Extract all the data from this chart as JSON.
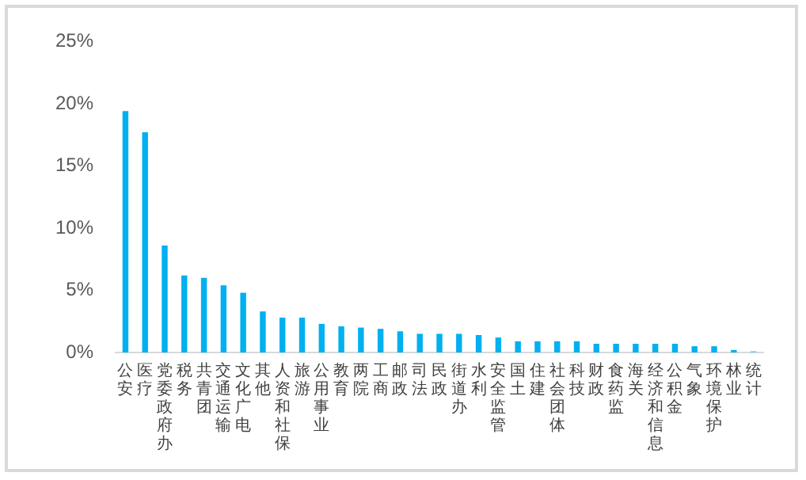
{
  "chart_data": {
    "type": "bar",
    "categories": [
      "公安",
      "医疗",
      "党委政府办",
      "税务",
      "共青团",
      "交通运输",
      "文化广电",
      "其他",
      "人资和社保",
      "旅游",
      "公用事业",
      "教育",
      "两院",
      "工商",
      "邮政",
      "司法",
      "民政",
      "街道办",
      "水利",
      "安全监管",
      "国土",
      "住建",
      "社会团体",
      "科技",
      "财政",
      "食药监",
      "海关",
      "经济和信息",
      "公积金",
      "气象",
      "环境保护",
      "林业",
      "统计"
    ],
    "values": [
      19.4,
      17.7,
      8.6,
      6.2,
      6.0,
      5.4,
      4.8,
      3.3,
      2.8,
      2.8,
      2.3,
      2.1,
      2.0,
      1.9,
      1.7,
      1.5,
      1.5,
      1.5,
      1.4,
      1.2,
      0.9,
      0.9,
      0.9,
      0.9,
      0.7,
      0.7,
      0.7,
      0.7,
      0.7,
      0.5,
      0.5,
      0.2,
      0.1
    ],
    "colors": [
      "#00b0f0",
      "#00b0f0",
      "#00b0f0",
      "#00b0f0",
      "#00b0f0",
      "#00b0f0",
      "#00b0f0",
      "#00b0f0",
      "#00b0f0",
      "#00b0f0",
      "#00b0f0",
      "#00b0f0",
      "#00b0f0",
      "#00b0f0",
      "#00b0f0",
      "#00b0f0",
      "#00b0f0",
      "#00b0f0",
      "#00b0f0",
      "#00b0f0",
      "#00b0f0",
      "#00b0f0",
      "#00b0f0",
      "#00b0f0",
      "#00b0f0",
      "#00b0f0",
      "#00b0f0",
      "#00b0f0",
      "#00b0f0",
      "#00b0f0",
      "#00b0f0",
      "#00b0f0",
      "#6ccaf2"
    ],
    "ylim": [
      0,
      25
    ],
    "yticks": [
      {
        "value": 0,
        "label": "0%"
      },
      {
        "value": 5,
        "label": "5%"
      },
      {
        "value": 10,
        "label": "10%"
      },
      {
        "value": 15,
        "label": "15%"
      },
      {
        "value": 20,
        "label": "20%"
      },
      {
        "value": 25,
        "label": "25%"
      }
    ],
    "grid": false,
    "legend": false
  }
}
